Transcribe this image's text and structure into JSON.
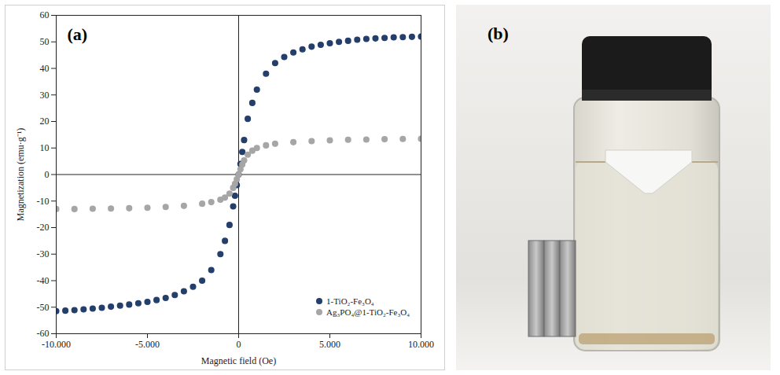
{
  "chart_data": {
    "type": "scatter",
    "annotations": [
      "(a)"
    ],
    "x_label": "Magnetic field (Oe)",
    "y_label": "Magnetization (emu·g⁻¹)",
    "xlim": [
      -10000,
      10000
    ],
    "xticks": [
      {
        "value": -10000,
        "label": "-10.000"
      },
      {
        "value": -5000,
        "label": "-5.000"
      },
      0,
      {
        "value": 5000,
        "label": "5.000"
      },
      {
        "value": 10000,
        "label": "10.000"
      }
    ],
    "ylim": [
      -60,
      60
    ],
    "yticks": [
      -60,
      -50,
      -40,
      -30,
      -20,
      -10,
      0,
      10,
      20,
      30,
      40,
      50,
      60
    ],
    "grid": false,
    "legend": "lower right",
    "series": [
      {
        "name": "1-TiO₂-Fe₃O₄",
        "color": "#243f6b",
        "marker": "circle",
        "x": [
          -10000,
          -9500,
          -9000,
          -8500,
          -8000,
          -7500,
          -7000,
          -6500,
          -6000,
          -5500,
          -5000,
          -4500,
          -4000,
          -3500,
          -3000,
          -2500,
          -2000,
          -1500,
          -1000,
          -750,
          -500,
          -300,
          -200,
          -100,
          0,
          100,
          200,
          300,
          500,
          750,
          1000,
          1500,
          2000,
          2500,
          3000,
          3500,
          4000,
          4500,
          5000,
          5500,
          6000,
          6500,
          7000,
          7500,
          8000,
          8500,
          9000,
          9500,
          10000
        ],
        "values": [
          -51.5,
          -51.3,
          -51.1,
          -50.8,
          -50.5,
          -50.2,
          -49.8,
          -49.4,
          -49,
          -48.5,
          -48,
          -47.3,
          -46.5,
          -45.4,
          -44,
          -42.3,
          -40,
          -36,
          -30,
          -25,
          -19,
          -12,
          -8,
          -4,
          0,
          4,
          8.5,
          13,
          21,
          27,
          32,
          38,
          42,
          44.3,
          46,
          47.2,
          48.2,
          48.9,
          49.5,
          50,
          50.4,
          50.8,
          51.1,
          51.3,
          51.5,
          51.7,
          51.8,
          51.9,
          52
        ]
      },
      {
        "name": "Ag₃PO₄@1-TiO₂-Fe₃O₄",
        "color": "#a6a6a6",
        "marker": "circle",
        "x": [
          -10000,
          -9000,
          -8000,
          -7000,
          -6000,
          -5000,
          -4000,
          -3000,
          -2000,
          -1500,
          -1000,
          -750,
          -500,
          -300,
          -200,
          -100,
          0,
          100,
          200,
          300,
          500,
          750,
          1000,
          1500,
          2000,
          3000,
          4000,
          5000,
          6000,
          7000,
          8000,
          9000,
          10000
        ],
        "values": [
          -13,
          -13,
          -12.9,
          -12.8,
          -12.7,
          -12.5,
          -12.2,
          -11.8,
          -11,
          -10.4,
          -9.5,
          -8.7,
          -7.2,
          -5,
          -3.5,
          -1.8,
          0,
          2,
          3.8,
          5.3,
          7.5,
          9,
          10,
          11,
          11.6,
          12.2,
          12.6,
          12.9,
          13.1,
          13.2,
          13.3,
          13.4,
          13.5
        ]
      }
    ]
  },
  "photo": {
    "label": "(b)"
  }
}
